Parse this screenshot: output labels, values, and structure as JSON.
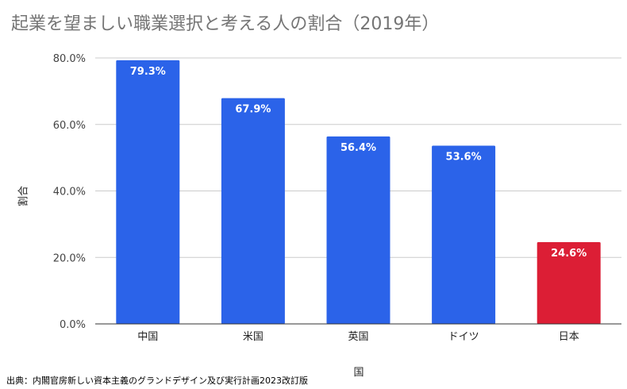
{
  "source_note": "出典：内閣官房新しい資本主義のグランドデザイン及び実行計画2023改訂版",
  "chart_data": {
    "type": "bar",
    "title": "起業を望ましい職業選択と考える人の割合（2019年）",
    "xlabel": "国",
    "ylabel": "割合",
    "categories": [
      "中国",
      "米国",
      "英国",
      "ドイツ",
      "日本"
    ],
    "values": [
      79.3,
      67.9,
      56.4,
      53.6,
      24.6
    ],
    "data_labels": [
      "79.3%",
      "67.9%",
      "56.4%",
      "53.6%",
      "24.6%"
    ],
    "bar_colors": [
      "#2b63e9",
      "#2b63e9",
      "#2b63e9",
      "#2b63e9",
      "#dc1e35"
    ],
    "ylim": [
      0,
      80
    ],
    "yticks": [
      0,
      20,
      40,
      60,
      80
    ],
    "ytick_labels": [
      "0.0%",
      "20.0%",
      "40.0%",
      "60.0%",
      "80.0%"
    ],
    "grid": true,
    "legend": "none"
  }
}
